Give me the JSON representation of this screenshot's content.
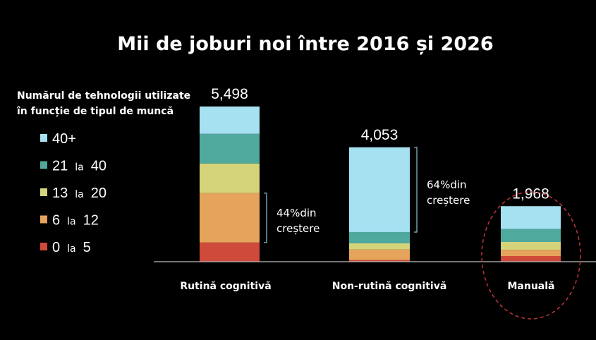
{
  "chart_data": {
    "type": "bar",
    "stacked": true,
    "title": "Mii de joburi noi între 2016 și 2026",
    "legend_title": [
      "Numărul de tehnologii utilizate",
      "în funcție de tipul de muncă"
    ],
    "legend_position": "left",
    "categories": [
      "Rutină cognitivă",
      "Non-rutină cognitivă",
      "Manuală"
    ],
    "totals": [
      "5,498",
      "4,053",
      "1,968"
    ],
    "series": [
      {
        "name": "0 la 5",
        "name_parts": [
          "0",
          "la",
          "5"
        ],
        "color": "#cf4a3a",
        "values": [
          680,
          60,
          200
        ]
      },
      {
        "name": "6 la 12",
        "name_parts": [
          "6",
          "la",
          "12"
        ],
        "color": "#e6a35c",
        "values": [
          1750,
          370,
          220
        ]
      },
      {
        "name": "13 la 20",
        "name_parts": [
          "13",
          "la",
          "20"
        ],
        "color": "#d5d47b",
        "values": [
          1050,
          220,
          280
        ]
      },
      {
        "name": "21 la 40",
        "name_parts": [
          "21",
          "la",
          "40"
        ],
        "color": "#4fa99d",
        "values": [
          1050,
          400,
          460
        ]
      },
      {
        "name": "40+",
        "name_parts": [
          "40+"
        ],
        "color": "#a6e1f2",
        "values": [
          968,
          3003,
          808
        ]
      }
    ],
    "annotations": [
      {
        "category": "Rutină cognitivă",
        "lines": [
          "44%din",
          "creștere"
        ]
      },
      {
        "category": "Non-rutină cognitivă",
        "lines": [
          "64%din",
          "creștere"
        ]
      }
    ],
    "highlight": "Manuală",
    "ylim": [
      0,
      5498
    ]
  },
  "colors": {
    "background": "#000000",
    "text": "#ffffff",
    "axis": "#bbbbbb",
    "highlight_circle": "#c0343b"
  }
}
